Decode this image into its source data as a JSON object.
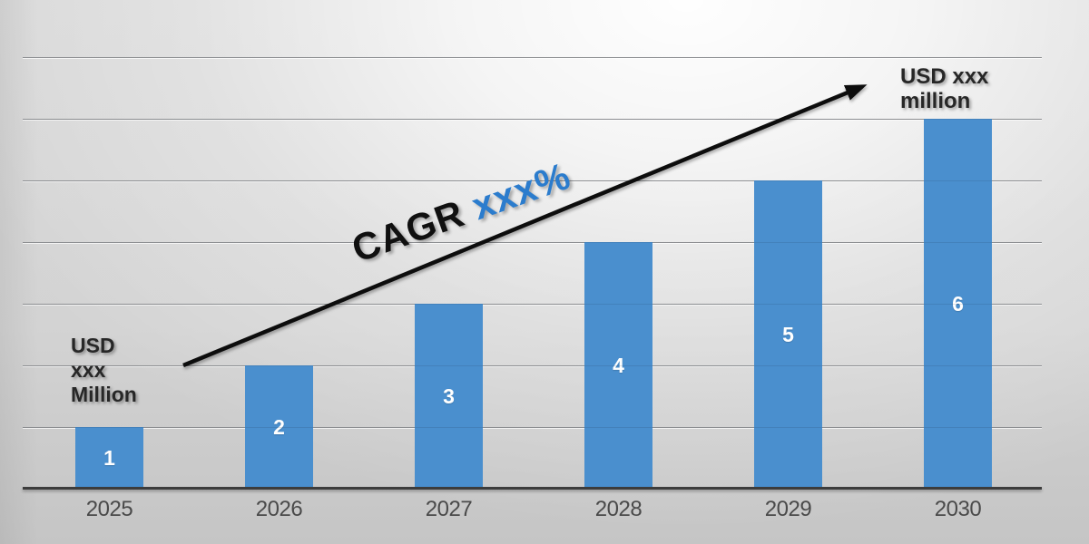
{
  "chart_data": {
    "type": "bar",
    "categories": [
      "2025",
      "2026",
      "2027",
      "2028",
      "2029",
      "2030"
    ],
    "values": [
      1,
      2,
      3,
      4,
      5,
      6
    ],
    "bar_labels": [
      "1",
      "2",
      "3",
      "4",
      "5",
      "6"
    ],
    "title": "",
    "xlabel": "",
    "ylabel": "",
    "ylim": [
      0,
      7
    ],
    "gridline_values": [
      1,
      2,
      3,
      4,
      5,
      6,
      7
    ],
    "grid": "horizontal lines, drawn faintly over bars",
    "legend": "none",
    "bar_color": "#4a8fce",
    "bar_label_color": "#ffffff"
  },
  "annotations": {
    "start_label": "USD\nxxx\nMillion",
    "end_label": "USD xxx\nmillion",
    "cagr_prefix": "CAGR ",
    "cagr_value": "xxx%"
  },
  "colors": {
    "cagr_value_blue": "#2b7ccd",
    "cagr_text_black": "#101010",
    "arrow_black": "#111111",
    "axis_dark_gray": "#3c3c3c",
    "gridline_gray": "#9d9d9d",
    "tick_label_gray": "#4a4a4a",
    "background_gray": "#d2d2d2"
  }
}
